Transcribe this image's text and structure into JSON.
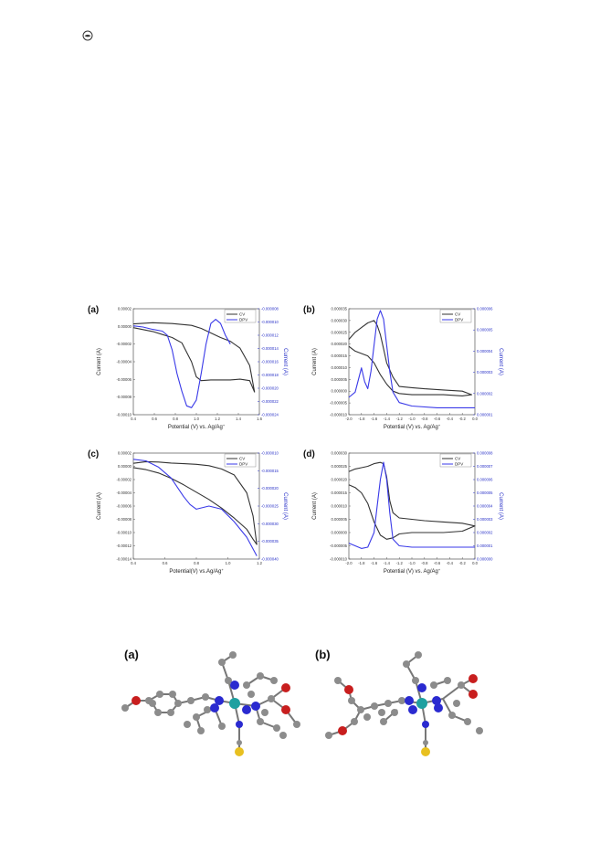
{
  "colors": {
    "cv": "#333333",
    "dpv": "#3a3ae8",
    "c_atom": "#8c8c8c",
    "n_atom": "#2a2ad0",
    "o_atom": "#c81e1e",
    "s_atom": "#e8c020",
    "metal": "#1fa0a0"
  },
  "icons": {
    "page_icon": "circle-logo-icon"
  },
  "charts": {
    "a": {
      "panel_label": "(a)",
      "xlabel": "Potential (V) vs. Ag/Ag",
      "xlabel_sup": "+",
      "ylabel": "Current (A)",
      "y2label": "Current (A)",
      "xticks": [
        "0.4",
        "0.6",
        "0.8",
        "1.0",
        "1.2",
        "1.4",
        "1.6"
      ],
      "yticks": [
        "0.00002",
        "0.00000",
        "-0.00002",
        "-0.00004",
        "-0.00006",
        "-0.00008",
        "-0.00010"
      ],
      "y2ticks": [
        "-0.000008",
        "-0.000010",
        "-0.000012",
        "-0.000014",
        "-0.000016",
        "-0.000018",
        "-0.000020",
        "-0.000022",
        "-0.000024"
      ],
      "legend": [
        "CV",
        "DPV"
      ],
      "legend_pos": "top-right"
    },
    "b": {
      "panel_label": "(b)",
      "xlabel": "Potential (V) vs. Ag/Ag",
      "xlabel_sup": "+",
      "ylabel": "Current (A)",
      "y2label": "Current (A)",
      "xticks": [
        "-2.0",
        "-1.8",
        "-1.6",
        "-1.4",
        "-1.2",
        "-1.0",
        "-0.8",
        "-0.6",
        "-0.4",
        "-0.2",
        "0.0"
      ],
      "yticks": [
        "0.000035",
        "0.000030",
        "0.000025",
        "0.000020",
        "0.000015",
        "0.000010",
        "0.000005",
        "0.000000",
        "-0.000005",
        "-0.000010"
      ],
      "y2ticks": [
        "0.000006",
        "0.000005",
        "0.000004",
        "0.000003",
        "0.000002",
        "0.000001"
      ],
      "legend": [
        "CV",
        "DPV"
      ],
      "legend_pos": "top-right"
    },
    "c": {
      "panel_label": "(c)",
      "xlabel": "Potential(V) vs.Ag/Ag",
      "xlabel_sup": "+",
      "ylabel": "Current (A)",
      "y2label": "Current (A)",
      "xticks": [
        "0.4",
        "0.6",
        "0.8",
        "1.0",
        "1.2"
      ],
      "yticks": [
        "0.00002",
        "0.00000",
        "-0.00002",
        "-0.00004",
        "-0.00006",
        "-0.00008",
        "-0.00010",
        "-0.00012",
        "-0.00014"
      ],
      "y2ticks": [
        "-0.000010",
        "-0.000015",
        "-0.000020",
        "-0.000025",
        "-0.000030",
        "-0.000035",
        "-0.000040"
      ],
      "legend": [
        "CV",
        "DPV"
      ],
      "legend_pos": "top-right"
    },
    "d": {
      "panel_label": "(d)",
      "xlabel": "Potential (V) vs. Ag/Ag",
      "xlabel_sup": "+",
      "ylabel": "Current (A)",
      "y2label": "Current (A)",
      "xticks": [
        "-2.0",
        "-1.8",
        "-1.6",
        "-1.4",
        "-1.2",
        "-1.0",
        "-0.8",
        "-0.6",
        "-0.4",
        "-0.2",
        "0.0"
      ],
      "yticks": [
        "0.000030",
        "0.000025",
        "0.000020",
        "0.000015",
        "0.000010",
        "0.000005",
        "0.000000",
        "-0.000005",
        "-0.000010"
      ],
      "y2ticks": [
        "0.000008",
        "0.000007",
        "0.000006",
        "0.000005",
        "0.000004",
        "0.000003",
        "0.000002",
        "0.000001",
        "0.000000"
      ],
      "legend": [
        "CV",
        "DPV"
      ],
      "legend_pos": "top-right"
    }
  },
  "molecules": {
    "a_label": "(a)",
    "b_label": "(b)"
  },
  "chart_data": [
    {
      "type": "line",
      "panel": "a",
      "xlabel": "Potential (V) vs. Ag/Ag+",
      "ylabel": "Current (A)",
      "y2label": "Current (A)",
      "xlim": [
        0.3,
        1.6
      ],
      "ylim": [
        -0.00011,
        3e-05
      ],
      "y2lim": [
        -2.5e-05,
        -7e-06
      ],
      "series": [
        {
          "name": "CV",
          "axis": "left",
          "x": [
            0.3,
            0.5,
            0.7,
            0.9,
            1.0,
            1.1,
            1.2,
            1.3,
            1.4,
            1.5,
            1.55,
            1.5,
            1.4,
            1.3,
            1.1,
            1.0,
            0.95,
            0.9,
            0.8,
            0.7,
            0.6,
            0.5,
            0.3
          ],
          "y": [
            1e-05,
            1.15e-05,
            1.05e-05,
            8e-06,
            4e-06,
            -2e-06,
            -8e-06,
            -1.3e-05,
            -2.2e-05,
            -4.5e-05,
            -8e-05,
            -6.5e-05,
            -6.3e-05,
            -6.4e-05,
            -6.4e-05,
            -6.5e-05,
            -6e-05,
            -4e-05,
            -1.5e-05,
            -8e-06,
            -4e-06,
            0.0,
            5e-06
          ]
        },
        {
          "name": "DPV",
          "axis": "right",
          "x": [
            0.3,
            0.4,
            0.5,
            0.6,
            0.65,
            0.7,
            0.75,
            0.8,
            0.85,
            0.9,
            0.95,
            1.0,
            1.05,
            1.1,
            1.15,
            1.2,
            1.25,
            1.3
          ],
          "y": [
            -9.9e-06,
            -1.01e-05,
            -1.05e-05,
            -1.08e-05,
            -1.15e-05,
            -1.4e-05,
            -1.8e-05,
            -2.1e-05,
            -2.35e-05,
            -2.38e-05,
            -2.25e-05,
            -1.8e-05,
            -1.3e-05,
            -9.5e-06,
            -8.8e-06,
            -9.5e-06,
            -1.15e-05,
            -1.3e-05
          ]
        }
      ]
    },
    {
      "type": "line",
      "panel": "b",
      "xlabel": "Potential (V) vs. Ag/Ag+",
      "ylabel": "Current (A)",
      "y2label": "Current (A)",
      "xlim": [
        -2.0,
        0.0
      ],
      "ylim": [
        -1e-05,
        3.5e-05
      ],
      "y2lim": [
        5e-07,
        6.6e-06
      ],
      "series": [
        {
          "name": "CV",
          "axis": "left",
          "x": [
            -2.0,
            -1.9,
            -1.8,
            -1.7,
            -1.6,
            -1.55,
            -1.5,
            -1.45,
            -1.4,
            -1.3,
            -1.2,
            -1.0,
            -0.8,
            -0.5,
            -0.2,
            -0.05,
            -0.2,
            -0.5,
            -0.8,
            -1.0,
            -1.2,
            -1.3,
            -1.4,
            -1.5,
            -1.6,
            -1.7,
            -1.8,
            -1.9,
            -2.0
          ],
          "y": [
            2.2e-05,
            2.5e-05,
            2.7e-05,
            2.9e-05,
            3e-05,
            2.8e-05,
            2.4e-05,
            1.8e-05,
            1.2e-05,
            6e-06,
            2e-06,
            1.5e-06,
            1e-06,
            5e-07,
            0.0,
            -1.5e-06,
            -2e-06,
            -1.5e-06,
            -1.5e-06,
            -1.5e-06,
            -1e-06,
            0.0,
            3e-06,
            7e-06,
            1.2e-05,
            1.5e-05,
            1.6e-05,
            1.7e-05,
            1.9e-05
          ]
        },
        {
          "name": "DPV",
          "axis": "right",
          "x": [
            -2.0,
            -1.9,
            -1.8,
            -1.75,
            -1.7,
            -1.65,
            -1.6,
            -1.55,
            -1.5,
            -1.45,
            -1.4,
            -1.35,
            -1.3,
            -1.2,
            -1.0,
            -0.6,
            -0.2,
            0.0
          ],
          "y": [
            1.5e-06,
            1.8e-06,
            3.2e-06,
            2.4e-06,
            2e-06,
            3e-06,
            4.5e-06,
            6e-06,
            6.5e-06,
            6e-06,
            4.5e-06,
            3e-06,
            1.8e-06,
            1.2e-06,
            1e-06,
            9e-07,
            9e-07,
            9e-07
          ]
        }
      ]
    },
    {
      "type": "line",
      "panel": "c",
      "xlabel": "Potential(V) vs.Ag/Ag+",
      "ylabel": "Current (A)",
      "y2label": "Current (A)",
      "xlim": [
        0.3,
        1.3
      ],
      "ylim": [
        -0.00014,
        2e-05
      ],
      "y2lim": [
        -4.2e-05,
        -8e-06
      ],
      "series": [
        {
          "name": "CV",
          "axis": "left",
          "x": [
            0.3,
            0.4,
            0.5,
            0.6,
            0.7,
            0.8,
            0.9,
            1.0,
            1.1,
            1.2,
            1.25,
            1.28,
            1.25,
            1.2,
            1.1,
            1.0,
            0.9,
            0.8,
            0.7,
            0.6,
            0.5,
            0.4,
            0.3
          ],
          "y": [
            4.5e-06,
            7e-06,
            6.5e-06,
            5e-06,
            4e-06,
            3e-06,
            1e-06,
            -4e-06,
            -1.3e-05,
            -4e-05,
            -7.5e-05,
            -0.000118,
            -0.00011,
            -9.5e-05,
            -7.8e-05,
            -6.3e-05,
            -5e-05,
            -3.9e-05,
            -2.8e-05,
            -1.8e-05,
            -1e-05,
            -5e-06,
            -2e-06
          ]
        },
        {
          "name": "DPV",
          "axis": "right",
          "x": [
            0.3,
            0.4,
            0.5,
            0.6,
            0.7,
            0.75,
            0.8,
            0.9,
            1.0,
            1.1,
            1.2,
            1.28
          ],
          "y": [
            -1e-05,
            -1.05e-05,
            -1.25e-05,
            -1.6e-05,
            -2.2e-05,
            -2.45e-05,
            -2.6e-05,
            -2.5e-05,
            -2.6e-05,
            -3e-05,
            -3.5e-05,
            -4.1e-05
          ]
        }
      ]
    },
    {
      "type": "line",
      "panel": "d",
      "xlabel": "Potential (V) vs. Ag/Ag+",
      "ylabel": "Current (A)",
      "y2label": "Current (A)",
      "xlim": [
        -2.0,
        0.0
      ],
      "ylim": [
        -1e-05,
        3e-05
      ],
      "y2lim": [
        0.0,
        8e-06
      ],
      "series": [
        {
          "name": "CV",
          "axis": "left",
          "x": [
            -2.0,
            -1.9,
            -1.8,
            -1.7,
            -1.6,
            -1.5,
            -1.45,
            -1.4,
            -1.35,
            -1.3,
            -1.2,
            -1.0,
            -0.8,
            -0.5,
            -0.2,
            0.0,
            -0.2,
            -0.5,
            -0.8,
            -1.0,
            -1.2,
            -1.3,
            -1.4,
            -1.5,
            -1.6,
            -1.7,
            -1.8,
            -1.9,
            -2.0
          ],
          "y": [
            2.3e-05,
            2.4e-05,
            2.45e-05,
            2.5e-05,
            2.6e-05,
            2.65e-05,
            2.6e-05,
            2.1e-05,
            1.2e-05,
            7.5e-06,
            5.5e-06,
            5e-06,
            4.5e-06,
            4e-06,
            3.5e-06,
            2.5e-06,
            5e-07,
            0.0,
            0.0,
            0.0,
            -5e-07,
            -2e-06,
            -2.5e-06,
            -1e-06,
            4e-06,
            1.1e-05,
            1.5e-05,
            1.7e-05,
            1.8e-05
          ]
        },
        {
          "name": "DPV",
          "axis": "right",
          "x": [
            -2.0,
            -1.9,
            -1.8,
            -1.7,
            -1.6,
            -1.55,
            -1.5,
            -1.45,
            -1.4,
            -1.35,
            -1.3,
            -1.2,
            -1.0,
            -0.6,
            -0.2,
            0.0
          ],
          "y": [
            1.2e-06,
            1e-06,
            8e-07,
            9e-07,
            2e-06,
            4e-06,
            6e-06,
            7.3e-06,
            6e-06,
            3.5e-06,
            1.5e-06,
            1e-06,
            9e-07,
            9e-07,
            9e-07,
            9e-07
          ]
        }
      ]
    }
  ]
}
